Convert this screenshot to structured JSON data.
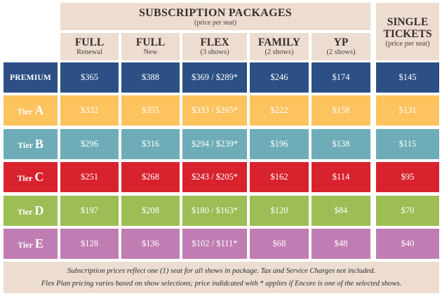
{
  "header": {
    "group_title": "SUBSCRIPTION PACKAGES",
    "group_subtitle": "(price per seat)",
    "columns": [
      {
        "main": "FULL",
        "sub": "Renewal"
      },
      {
        "main": "FULL",
        "sub": "New"
      },
      {
        "main": "FLEX",
        "sub": "(3 shows)"
      },
      {
        "main": "FAMILY",
        "sub": "(2 shows)"
      },
      {
        "main": "YP",
        "sub": "(2 shows)"
      }
    ],
    "single_line1": "SINGLE",
    "single_line2": "TICKETS",
    "single_sub": "(price per seat)"
  },
  "rows": [
    {
      "prefix": "",
      "letter": "",
      "label": "PREMIUM",
      "color": "#2c5085",
      "prices": [
        "$365",
        "$388",
        "$369 / $289*",
        "$246",
        "$174",
        "$145"
      ]
    },
    {
      "prefix": "Tier",
      "letter": "A",
      "label": "",
      "color": "#fdc35f",
      "prices": [
        "$332",
        "$355",
        "$333 / $265*",
        "$222",
        "$158",
        "$131"
      ]
    },
    {
      "prefix": "Tier",
      "letter": "B",
      "label": "",
      "color": "#6eadb7",
      "prices": [
        "$296",
        "$316",
        "$294 / $239*",
        "$196",
        "$138",
        "$115"
      ]
    },
    {
      "prefix": "Tier",
      "letter": "C",
      "label": "",
      "color": "#d8232f",
      "prices": [
        "$251",
        "$268",
        "$243 / $205*",
        "$162",
        "$114",
        "$95"
      ]
    },
    {
      "prefix": "Tier",
      "letter": "D",
      "label": "",
      "color": "#9dbd55",
      "prices": [
        "$197",
        "$208",
        "$180 / $163*",
        "$120",
        "$84",
        "$70"
      ]
    },
    {
      "prefix": "Tier",
      "letter": "E",
      "label": "",
      "color": "#c07db3",
      "prices": [
        "$128",
        "$136",
        "$102 / $111*",
        "$68",
        "$48",
        "$40"
      ]
    }
  ],
  "footer": {
    "line1": "Subscription prices reflect one (1) seat for all shows in package.  Tax and Service Charges not included.",
    "line2": "Flex Plan pricing varies based on show selections; price indidcated with * applies if Encore is one of the selected shows."
  }
}
